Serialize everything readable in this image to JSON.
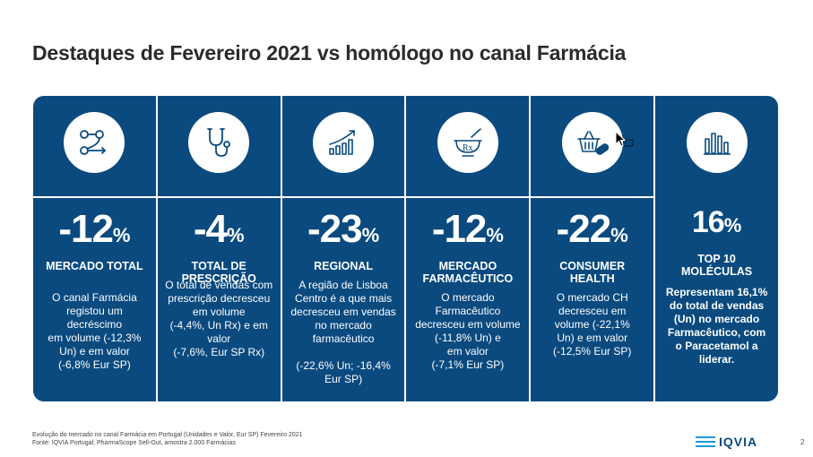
{
  "title": "Destaques de Fevereiro 2021 vs homólogo no canal Farmácia",
  "columns": [
    {
      "icon": "flow-network-icon",
      "value": "-12",
      "unit": "%",
      "label": "MERCADO TOTAL",
      "text": "O canal Farmácia\nregistou um\ndecréscimo\nem volume (-12,3%\nUn) e em valor\n(-6,8% Eur SP)"
    },
    {
      "icon": "stethoscope-icon",
      "value": "-4",
      "unit": "%",
      "label": "TOTAL DE\nPRESCRIÇÃO",
      "text": "O total de vendas com\nprescrição decresceu\nem volume\n(-4,4%, Un Rx) e em\nvalor\n(-7,6%, Eur SP Rx)"
    },
    {
      "icon": "growth-chart-icon",
      "value": "-23",
      "unit": "%",
      "label": "REGIONAL",
      "text": "A região de Lisboa\nCentro é a que mais\ndecresceu em vendas\nno mercado\nfarmacêutico\n\n(-22,6% Un; -16,4%\nEur SP)"
    },
    {
      "icon": "mortar-rx-icon",
      "value": "-12",
      "unit": "%",
      "label": "MERCADO\nFARMACÊUTICO",
      "text": "O mercado\nFarmacêutico\ndecresceu em volume\n(-11,8% Un) e\nem valor\n(-7,1% Eur SP)"
    },
    {
      "icon": "basket-pill-icon",
      "value": "-22",
      "unit": "%",
      "label": "CONSUMER\nHEALTH",
      "text": "O mercado CH\ndecresceu em\nvolume (-22,1%\nUn) e em valor\n(-12,5% Eur SP)"
    },
    {
      "icon": "bar-chart-icon",
      "value": "16",
      "unit": "%",
      "label": "TOP 10\nMOLÉCULAS",
      "text": "Representam 16,1%\ndo total de vendas\n(Un) no mercado\nFarmacêutico, com\no Paracetamol a\nliderar."
    }
  ],
  "footnote": {
    "line1": "Evolução do mercado no canal Farmácia em Portugal (Unidades e Valor, Eur SP) Fevereiro 2021",
    "line2": "Fonte: IQVIA Portugal; PharmaScope Sell-Out, amostra 2.000 Farmácias"
  },
  "logo": {
    "text": "IQVIA",
    "accent": "#1a9ad6"
  },
  "page_number": "2",
  "colors": {
    "panel": "#0a4a7f",
    "text": "#ffffff"
  }
}
